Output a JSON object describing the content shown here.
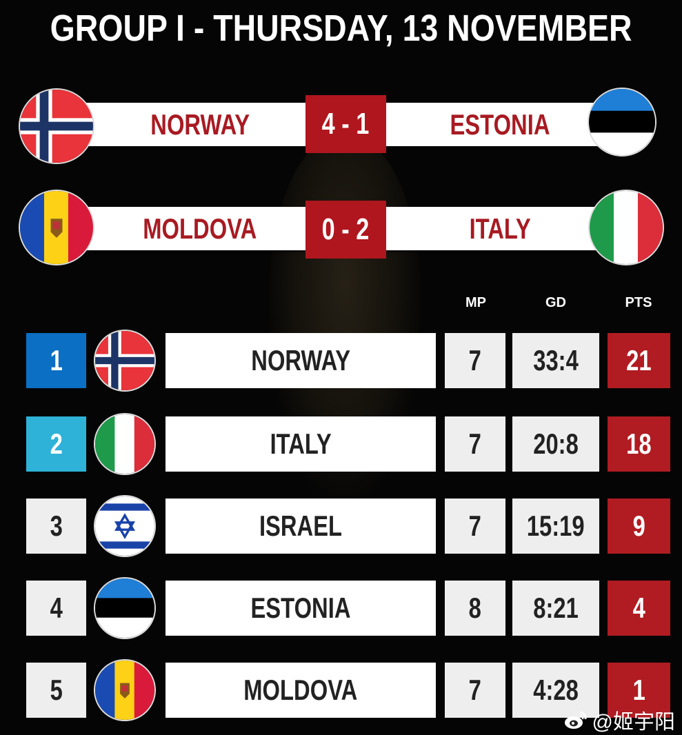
{
  "title": "GROUP I - THURSDAY, 13 NOVEMBER",
  "matches": [
    {
      "home": "NORWAY",
      "score": "4 - 1",
      "away": "ESTONIA",
      "home_flag": "norway-flag",
      "away_flag": "estonia-flag"
    },
    {
      "home": "MOLDOVA",
      "score": "0 - 2",
      "away": "ITALY",
      "home_flag": "moldova-flag",
      "away_flag": "italy-flag"
    }
  ],
  "table": {
    "headers": {
      "mp": "MP",
      "gd": "GD",
      "pts": "PTS"
    },
    "rows": [
      {
        "rank": "1",
        "team": "NORWAY",
        "mp": "7",
        "gd": "33:4",
        "pts": "21",
        "rank_color": "#0b6fc3",
        "flag": "norway-flag"
      },
      {
        "rank": "2",
        "team": "ITALY",
        "mp": "7",
        "gd": "20:8",
        "pts": "18",
        "rank_color": "#2eb2d8",
        "flag": "italy-flag"
      },
      {
        "rank": "3",
        "team": "ISRAEL",
        "mp": "7",
        "gd": "15:19",
        "pts": "9",
        "rank_color": "#eeeeee",
        "flag": "israel-flag"
      },
      {
        "rank": "4",
        "team": "ESTONIA",
        "mp": "8",
        "gd": "8:21",
        "pts": "4",
        "rank_color": "#eeeeee",
        "flag": "estonia-flag"
      },
      {
        "rank": "5",
        "team": "MOLDOVA",
        "mp": "7",
        "gd": "4:28",
        "pts": "1",
        "rank_color": "#eeeeee",
        "flag": "moldova-flag"
      }
    ]
  },
  "colors": {
    "accent_red": "#b0161e",
    "background": "#050505"
  },
  "watermark": "@姬宇阳"
}
